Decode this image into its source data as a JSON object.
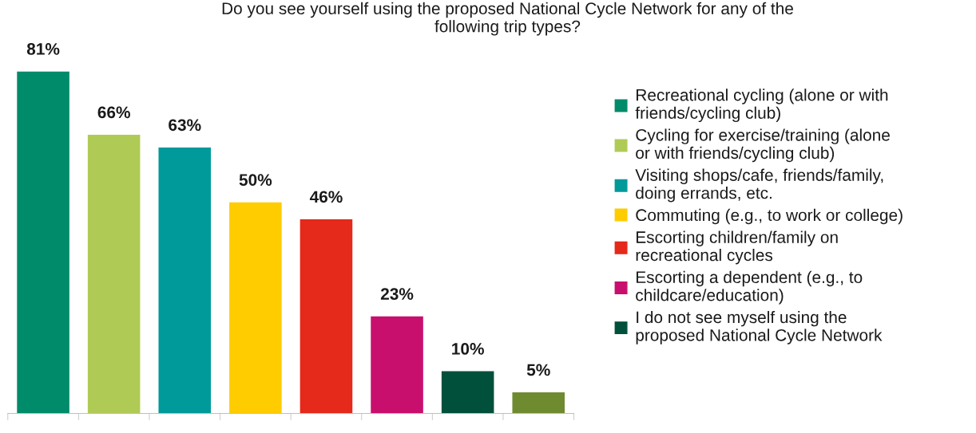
{
  "chart_data": {
    "type": "bar",
    "title": "Do you see yourself using the proposed National Cycle Network for any of the\nfollowing trip types?",
    "categories": [
      null,
      null,
      null,
      null,
      null,
      null,
      null,
      null
    ],
    "stacked": true,
    "series": [
      {
        "name": "Recreational cycling (alone or with\nfriends/cycling club)",
        "color": "#008b6a",
        "values": [
          81,
          0,
          0,
          0,
          0,
          0,
          0,
          0
        ],
        "value_labels": [
          "81%",
          null,
          null,
          null,
          null,
          null,
          null,
          null
        ]
      },
      {
        "name": "Cycling for exercise/training (alone\nor with friends/cycling club)",
        "color": "#b0cb55",
        "values": [
          0,
          66,
          0,
          0,
          0,
          0,
          0,
          0
        ],
        "value_labels": [
          null,
          "66%",
          null,
          null,
          null,
          null,
          null,
          null
        ]
      },
      {
        "name": "Visiting shops/cafe, friends/family,\ndoing errands, etc.",
        "color": "#009a9a",
        "values": [
          0,
          0,
          63,
          0,
          0,
          0,
          0,
          0
        ],
        "value_labels": [
          null,
          null,
          "63%",
          null,
          null,
          null,
          null,
          null
        ]
      },
      {
        "name": "Commuting (e.g., to work or college)",
        "color": "#ffcc00",
        "values": [
          0,
          0,
          0,
          50,
          0,
          0,
          0,
          0
        ],
        "value_labels": [
          null,
          null,
          null,
          "50%",
          null,
          null,
          null,
          null
        ]
      },
      {
        "name": "Escorting children/family on\nrecreational cycles",
        "color": "#e5291a",
        "values": [
          0,
          0,
          0,
          0,
          46,
          0,
          0,
          0
        ],
        "value_labels": [
          null,
          null,
          null,
          null,
          "46%",
          null,
          null,
          null
        ]
      },
      {
        "name": "Escorting a dependent (e.g., to\nchildcare/education)",
        "color": "#c80f6e",
        "values": [
          0,
          0,
          0,
          0,
          0,
          23,
          0,
          0
        ],
        "value_labels": [
          null,
          null,
          null,
          null,
          null,
          "23%",
          null,
          null
        ]
      },
      {
        "name": "I do not see myself using the\nproposed National Cycle Network",
        "color": "#00503c",
        "values": [
          0,
          0,
          0,
          0,
          0,
          0,
          10,
          0
        ],
        "value_labels": [
          null,
          null,
          null,
          null,
          null,
          null,
          "10%",
          null
        ]
      },
      {
        "color": "#6f8b2f",
        "values": [
          0,
          0,
          0,
          0,
          0,
          0,
          0,
          5
        ],
        "value_labels": [
          null,
          null,
          null,
          null,
          null,
          null,
          null,
          "5%"
        ]
      }
    ],
    "tick_labels": false,
    "legend": "right",
    "grid": false
  }
}
